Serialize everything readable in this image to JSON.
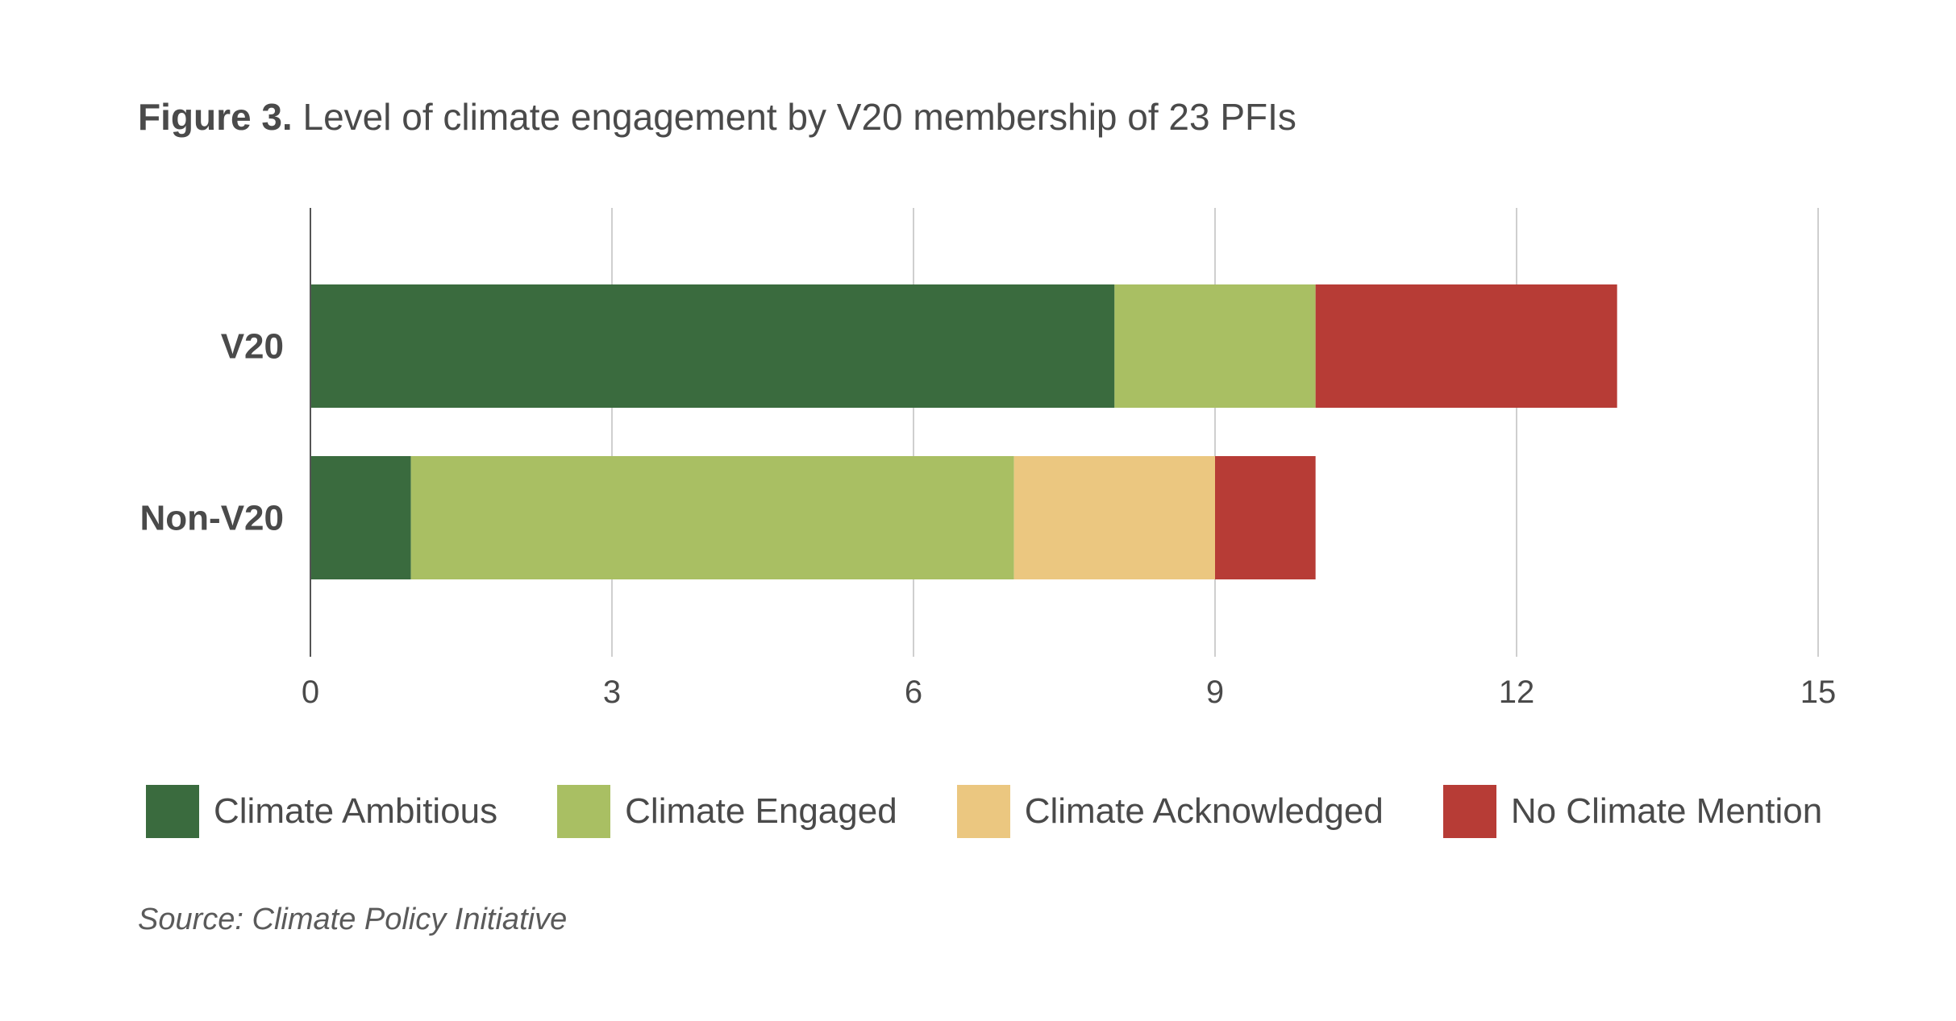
{
  "figure": {
    "number_label": "Figure 3.",
    "title_text": "Level of climate engagement by V20 membership of 23 PFIs"
  },
  "chart_data": {
    "type": "bar",
    "orientation": "horizontal",
    "stacked": true,
    "title": "Figure 3. Level of climate engagement by V20 membership of 23 PFIs",
    "categories": [
      "V20",
      "Non-V20"
    ],
    "series": [
      {
        "name": "Climate Ambitious",
        "color": "#3a6b3e",
        "values": [
          8,
          1
        ]
      },
      {
        "name": "Climate Engaged",
        "color": "#a9bf63",
        "values": [
          2,
          6
        ]
      },
      {
        "name": "Climate Acknowledged",
        "color": "#ebc780",
        "values": [
          0,
          2
        ]
      },
      {
        "name": "No Climate Mention",
        "color": "#b73c36",
        "values": [
          3,
          1
        ]
      }
    ],
    "xlim": [
      0,
      15
    ],
    "x_ticks": [
      0,
      3,
      6,
      9,
      12,
      15
    ],
    "grid": "vertical",
    "legend": "bottom"
  },
  "source_note": "Source: Climate Policy Initiative"
}
